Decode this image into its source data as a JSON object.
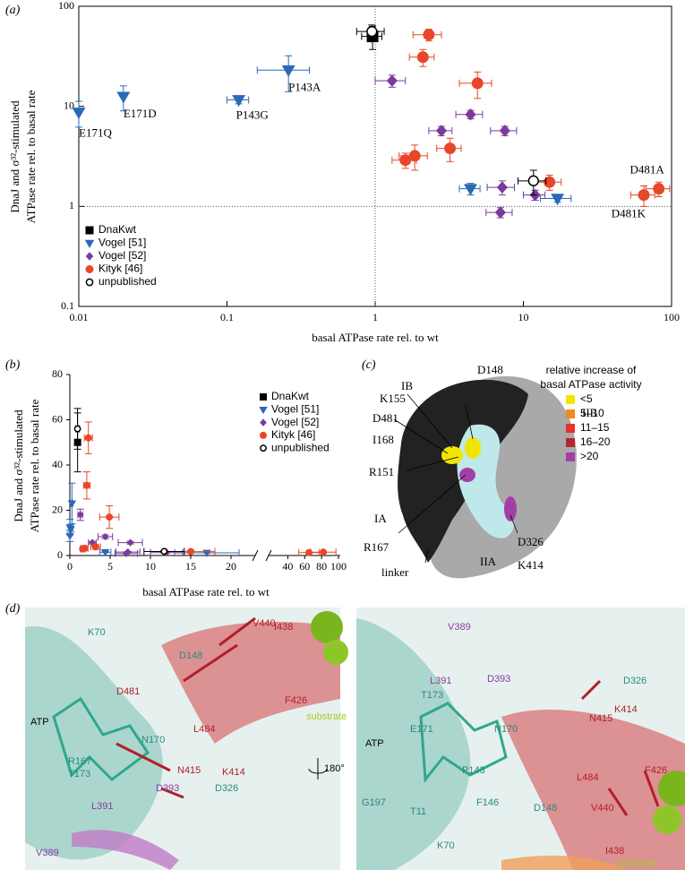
{
  "chart_data": [
    {
      "type": "scatter",
      "panel_label": "(a)",
      "xscale": "log",
      "yscale": "log",
      "xlabel": "basal ATPase rate rel. to wt",
      "ylabel": [
        "DnaJ and σ³²-stimulated",
        "ATPase rate rel. to basal rate"
      ],
      "xlim": [
        0.01,
        100
      ],
      "ylim": [
        0.1,
        100
      ],
      "xticks": [
        0.01,
        0.1,
        1,
        10,
        100
      ],
      "yticks": [
        0.1,
        1,
        10,
        100
      ],
      "ref_lines": {
        "x": 1,
        "y": 1
      },
      "series": [
        {
          "name": "DnaKwt",
          "color": "#000000",
          "marker": "square",
          "x": [
            0.96
          ],
          "values": [
            50
          ],
          "xerr": [
            0.15
          ],
          "yerr": [
            13
          ]
        },
        {
          "name": "Vogel [51]",
          "color": "#2a6ab7",
          "marker": "triangle-down",
          "x": [
            0.01,
            0.02,
            0.12,
            0.26,
            4.4,
            17
          ],
          "values": [
            8.7,
            12.5,
            11.6,
            23,
            1.5,
            1.2
          ],
          "xerr": [
            0,
            0,
            0.02,
            0.1,
            0.7,
            4
          ],
          "yerr": [
            2.5,
            3.5,
            1,
            9,
            0.2,
            0.1
          ],
          "labels": [
            "E171Q",
            "E171D",
            "P143G",
            "P143A",
            null,
            null
          ]
        },
        {
          "name": "Vogel [52]",
          "color": "#7b3a9c",
          "marker": "diamond",
          "x": [
            1.3,
            4.4,
            2.8,
            7.5,
            7.2,
            12,
            7
          ],
          "values": [
            18,
            8.3,
            5.7,
            5.7,
            1.55,
            1.3,
            0.87
          ],
          "xerr": [
            0.3,
            0.9,
            0.5,
            1.5,
            1.5,
            2,
            1.4
          ],
          "yerr": [
            2.5,
            0.8,
            0.6,
            0.6,
            0.25,
            0.15,
            0.1
          ]
        },
        {
          "name": "Kityk [46]",
          "color": "#e8462a",
          "marker": "circle",
          "x": [
            2.3,
            2.1,
            4.9,
            3.2,
            1.85,
            1.6,
            15,
            65,
            82
          ],
          "values": [
            52,
            31,
            17,
            3.8,
            3.2,
            2.9,
            1.75,
            1.3,
            1.5
          ],
          "xerr": [
            0.5,
            0.4,
            1.2,
            0.6,
            0.4,
            0.3,
            3,
            12,
            15
          ],
          "yerr": [
            7,
            6,
            5,
            1,
            0.9,
            0.5,
            0.3,
            0.3,
            0.25
          ],
          "labels": [
            null,
            null,
            null,
            null,
            null,
            null,
            null,
            "D481K",
            "D481A"
          ]
        },
        {
          "name": "unpublished",
          "color": "#000000",
          "marker": "circle-open",
          "x": [
            0.95,
            11.7
          ],
          "values": [
            56,
            1.8
          ],
          "xerr": [
            0.2,
            2.5
          ],
          "yerr": [
            9,
            0.5
          ]
        }
      ]
    },
    {
      "type": "scatter-broken",
      "panel_label": "(b)",
      "xlabel": "basal ATPase rate rel. to wt",
      "ylabel": [
        "DnaJ and σ³²-stimulated",
        "ATPase rate rel. to basal rate"
      ],
      "xlim": [
        0,
        23
      ],
      "xticks": [
        0,
        5,
        10,
        15,
        20
      ],
      "xlim_break": [
        30,
        100
      ],
      "xticks_break": [
        40,
        60,
        80,
        100
      ],
      "ylim": [
        0,
        80
      ],
      "yticks": [
        0,
        20,
        40,
        60,
        80
      ]
    }
  ],
  "panel_c": {
    "panel_label": "(c)",
    "legend_title": [
      "relative increase of",
      "basal ATPase activity"
    ],
    "legend": [
      {
        "label": "<5",
        "color": "#f2e600"
      },
      {
        "label": "5–10",
        "color": "#f08a1e"
      },
      {
        "label": "11–15",
        "color": "#e8322a"
      },
      {
        "label": "16–20",
        "color": "#b5282e"
      },
      {
        "label": ">20",
        "color": "#a23fa6"
      }
    ],
    "labels": [
      "IB",
      "D148",
      "IIB",
      "K155",
      "D481",
      "I168",
      "R151",
      "IA",
      "R167",
      "linker",
      "IIA",
      "D326",
      "K414"
    ]
  },
  "panel_d": {
    "panel_label": "(d)",
    "rotation": "180°",
    "left_labels": [
      "K70",
      "D148",
      "V440",
      "I438",
      "F426",
      "substrate",
      "ATP",
      "D481",
      "L484",
      "N170",
      "R167",
      "T173",
      "K414",
      "N415",
      "D326",
      "D393",
      "L391",
      "V389"
    ],
    "right_labels": [
      "V389",
      "L391",
      "D393",
      "D326",
      "T173",
      "N415",
      "K414",
      "ATP",
      "E171",
      "N170",
      "P143",
      "L484",
      "F426",
      "G197",
      "T11",
      "F146",
      "D148",
      "V440",
      "K70",
      "I438",
      "substrate"
    ]
  }
}
